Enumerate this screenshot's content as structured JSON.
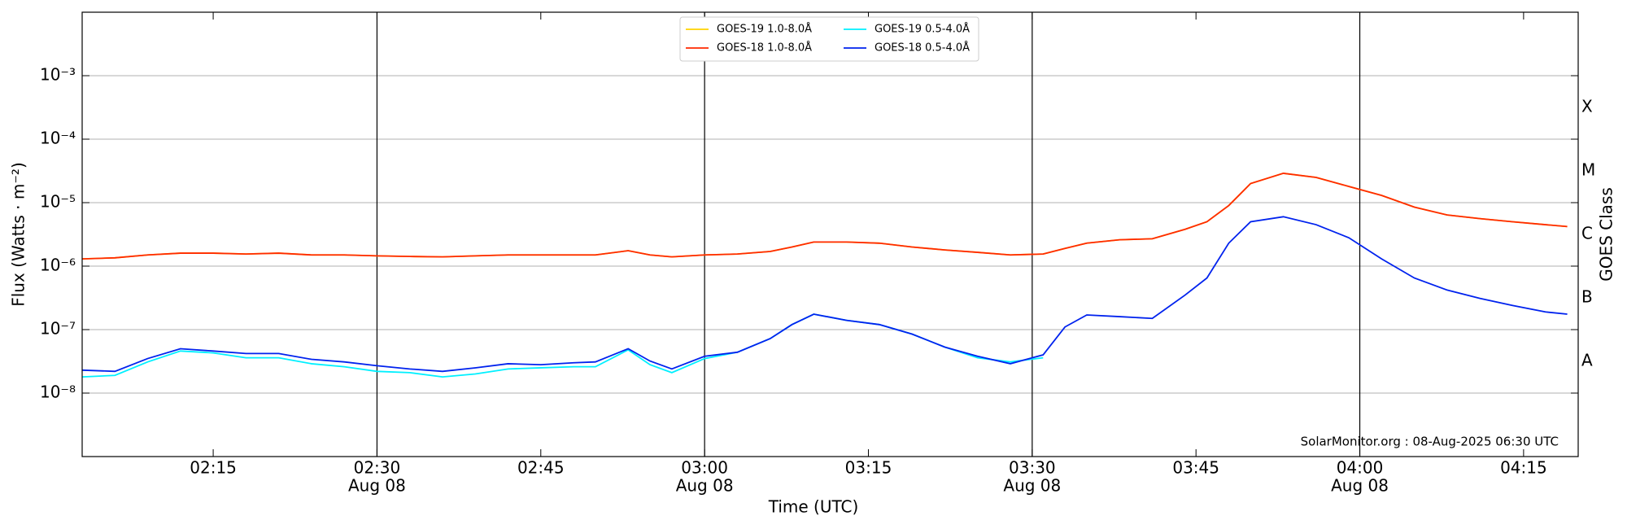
{
  "chart_data": {
    "type": "line",
    "ylabel": "Flux (Watts · m⁻²)",
    "xlabel": "Time (UTC)",
    "y2label": "GOES Class",
    "annotation": "SolarMonitor.org : 08-Aug-2025 06:30 UTC",
    "log_scale": true,
    "grid": true,
    "legend": "upper center",
    "x": [
      "02:03",
      "02:06",
      "02:09",
      "02:12",
      "02:15",
      "02:18",
      "02:21",
      "02:24",
      "02:27",
      "02:30",
      "02:33",
      "02:36",
      "02:39",
      "02:42",
      "02:45",
      "02:48",
      "02:50",
      "02:53",
      "02:55",
      "02:57",
      "03:00",
      "03:03",
      "03:06",
      "03:08",
      "03:10",
      "03:13",
      "03:16",
      "03:19",
      "03:22",
      "03:25",
      "03:28",
      "03:31",
      "03:33",
      "03:35",
      "03:38",
      "03:41",
      "03:44",
      "03:46",
      "03:48",
      "03:50",
      "03:53",
      "03:56",
      "03:59",
      "04:02",
      "04:05",
      "04:08",
      "04:11",
      "04:14",
      "04:17",
      "04:19"
    ],
    "xlim": [
      "02:03",
      "04:20"
    ],
    "xticks": [
      "02:15",
      {
        "value": "02:30",
        "label": "02:30",
        "date": "Aug 08"
      },
      "02:45",
      {
        "value": "03:00",
        "label": "03:00",
        "date": "Aug 08"
      },
      "03:15",
      {
        "value": "03:30",
        "label": "03:30",
        "date": "Aug 08"
      },
      "03:45",
      {
        "value": "04:00",
        "label": "04:00",
        "date": "Aug 08"
      },
      "04:15"
    ],
    "ylim": [
      1e-09,
      0.01
    ],
    "yticks": [
      {
        "value": 1e-08,
        "label": "10⁻⁸"
      },
      {
        "value": 1e-07,
        "label": "10⁻⁷"
      },
      {
        "value": 1e-06,
        "label": "10⁻⁶"
      },
      {
        "value": 1e-05,
        "label": "10⁻⁵"
      },
      {
        "value": 0.0001,
        "label": "10⁻⁴"
      },
      {
        "value": 0.001,
        "label": "10⁻³"
      }
    ],
    "y2lim": [
      1e-09,
      0.01
    ],
    "y2ticks": [
      {
        "value": 3.162e-08,
        "label": "A"
      },
      {
        "value": 3.162e-07,
        "label": "B"
      },
      {
        "value": 3.162e-06,
        "label": "C"
      },
      {
        "value": 3.162e-05,
        "label": "M"
      },
      {
        "value": 0.0003162,
        "label": "X"
      }
    ],
    "series": [
      {
        "name": "GOES-19 1.0-8.0Å",
        "color": "#ffd200",
        "values": [
          1.3e-06,
          1.35e-06,
          1.5e-06,
          1.6e-06,
          1.6e-06,
          1.55e-06,
          1.6e-06,
          1.5e-06,
          1.5e-06,
          1.45e-06,
          1.42e-06,
          1.4e-06,
          1.45e-06,
          1.5e-06,
          1.5e-06,
          1.5e-06,
          1.5e-06,
          1.75e-06,
          1.5e-06,
          1.4e-06,
          1.5e-06,
          1.55e-06,
          1.7e-06,
          2e-06,
          2.4e-06,
          2.4e-06,
          2.3e-06,
          2e-06,
          1.8e-06,
          1.65e-06,
          1.5e-06,
          1.55e-06,
          1.9e-06,
          2.3e-06,
          2.6e-06,
          2.7e-06,
          3.8e-06,
          5e-06,
          9e-06,
          2e-05,
          2.9e-05,
          2.5e-05,
          1.8e-05,
          1.3e-05,
          8.5e-06,
          6.4e-06,
          5.6e-06,
          5e-06,
          4.5e-06,
          4.2e-06
        ]
      },
      {
        "name": "GOES-18 1.0-8.0Å",
        "color": "#ff2a00",
        "values": [
          1.3e-06,
          1.35e-06,
          1.5e-06,
          1.6e-06,
          1.6e-06,
          1.55e-06,
          1.6e-06,
          1.5e-06,
          1.5e-06,
          1.45e-06,
          1.42e-06,
          1.4e-06,
          1.45e-06,
          1.5e-06,
          1.5e-06,
          1.5e-06,
          1.5e-06,
          1.75e-06,
          1.5e-06,
          1.4e-06,
          1.5e-06,
          1.55e-06,
          1.7e-06,
          2e-06,
          2.4e-06,
          2.4e-06,
          2.3e-06,
          2e-06,
          1.8e-06,
          1.65e-06,
          1.5e-06,
          1.55e-06,
          1.9e-06,
          2.3e-06,
          2.6e-06,
          2.7e-06,
          3.8e-06,
          5e-06,
          9e-06,
          2e-05,
          2.9e-05,
          2.5e-05,
          1.8e-05,
          1.3e-05,
          8.5e-06,
          6.4e-06,
          5.6e-06,
          5e-06,
          4.5e-06,
          4.2e-06
        ]
      },
      {
        "name": "GOES-19 0.5-4.0Å",
        "color": "#00f0ff",
        "values": [
          1.8e-08,
          1.9e-08,
          3.1e-08,
          4.6e-08,
          4.3e-08,
          3.6e-08,
          3.6e-08,
          2.9e-08,
          2.6e-08,
          2.2e-08,
          2.1e-08,
          1.8e-08,
          2e-08,
          2.4e-08,
          2.5e-08,
          2.6e-08,
          2.6e-08,
          4.8e-08,
          2.8e-08,
          2.1e-08,
          3.5e-08,
          4.4e-08,
          7.2e-08,
          1.2e-07,
          1.75e-07,
          1.4e-07,
          1.2e-07,
          8.5e-08,
          5.3e-08,
          3.6e-08,
          3.1e-08,
          3.6e-08,
          null,
          null,
          null,
          null,
          null,
          null,
          null,
          null,
          null,
          null,
          null,
          null,
          null,
          null,
          null,
          null,
          null,
          null
        ]
      },
      {
        "name": "GOES-18 0.5-4.0Å",
        "color": "#0022ee",
        "values": [
          2.3e-08,
          2.2e-08,
          3.5e-08,
          5e-08,
          4.6e-08,
          4.2e-08,
          4.2e-08,
          3.4e-08,
          3.1e-08,
          2.7e-08,
          2.4e-08,
          2.2e-08,
          2.5e-08,
          2.9e-08,
          2.8e-08,
          3e-08,
          3.1e-08,
          5e-08,
          3.2e-08,
          2.4e-08,
          3.8e-08,
          4.4e-08,
          7.2e-08,
          1.2e-07,
          1.75e-07,
          1.4e-07,
          1.2e-07,
          8.5e-08,
          5.3e-08,
          3.8e-08,
          2.9e-08,
          4e-08,
          1.1e-07,
          1.7e-07,
          1.6e-07,
          1.5e-07,
          3.5e-07,
          6.5e-07,
          2.3e-06,
          5e-06,
          6e-06,
          4.5e-06,
          2.8e-06,
          1.3e-06,
          6.5e-07,
          4.2e-07,
          3.1e-07,
          2.4e-07,
          1.9e-07,
          1.75e-07
        ]
      }
    ]
  }
}
